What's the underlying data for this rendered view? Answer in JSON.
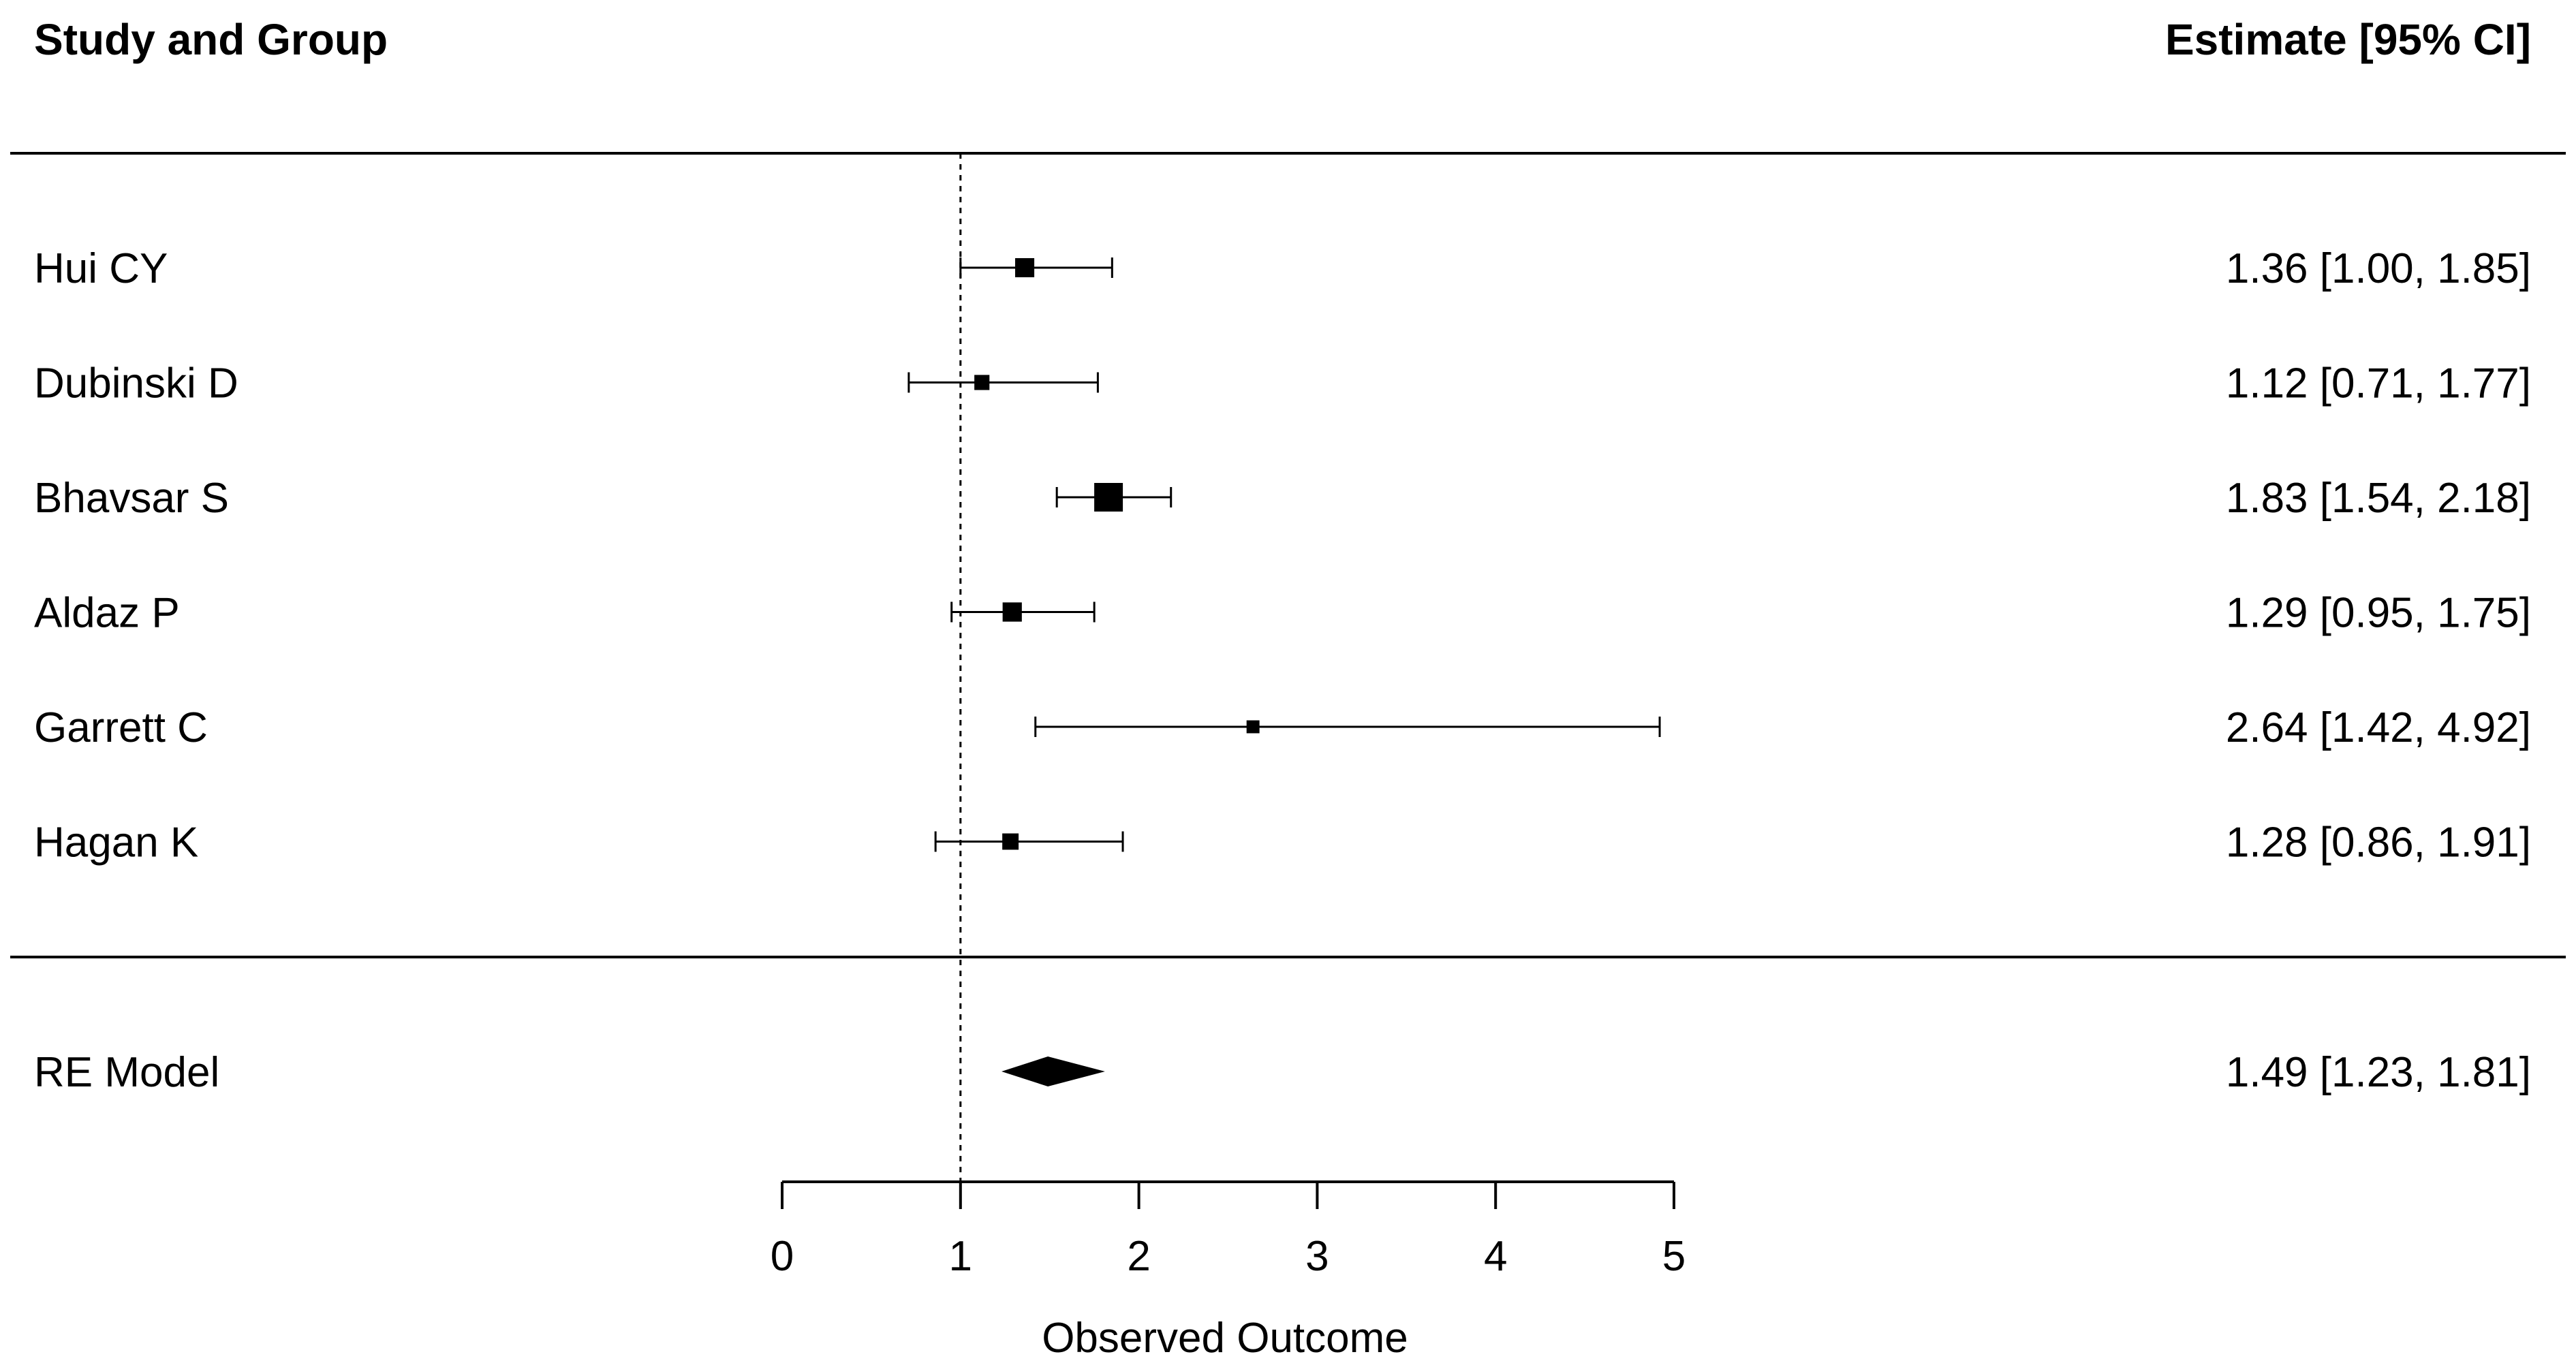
{
  "chart_data": {
    "type": "forest",
    "header_left": "Study and Group",
    "header_right": "Estimate [95% CI]",
    "xlabel": "Observed Outcome",
    "xlim": [
      0,
      5
    ],
    "xticks": [
      0,
      1,
      2,
      3,
      4,
      5
    ],
    "reference_line": 1,
    "studies": [
      {
        "label": "Hui CY",
        "estimate": 1.36,
        "lower": 1.0,
        "upper": 1.85,
        "text": "1.36 [1.00, 1.85]"
      },
      {
        "label": "Dubinski D",
        "estimate": 1.12,
        "lower": 0.71,
        "upper": 1.77,
        "text": "1.12 [0.71, 1.77]"
      },
      {
        "label": "Bhavsar S",
        "estimate": 1.83,
        "lower": 1.54,
        "upper": 2.18,
        "text": "1.83 [1.54, 2.18]"
      },
      {
        "label": "Aldaz P",
        "estimate": 1.29,
        "lower": 0.95,
        "upper": 1.75,
        "text": "1.29 [0.95, 1.75]"
      },
      {
        "label": "Garrett C",
        "estimate": 2.64,
        "lower": 1.42,
        "upper": 4.92,
        "text": "2.64 [1.42, 4.92]"
      },
      {
        "label": "Hagan K",
        "estimate": 1.28,
        "lower": 0.86,
        "upper": 1.91,
        "text": "1.28 [0.86, 1.91]"
      }
    ],
    "summary": {
      "label": "RE Model",
      "estimate": 1.49,
      "lower": 1.23,
      "upper": 1.81,
      "text": "1.49 [1.23, 1.81]"
    }
  }
}
